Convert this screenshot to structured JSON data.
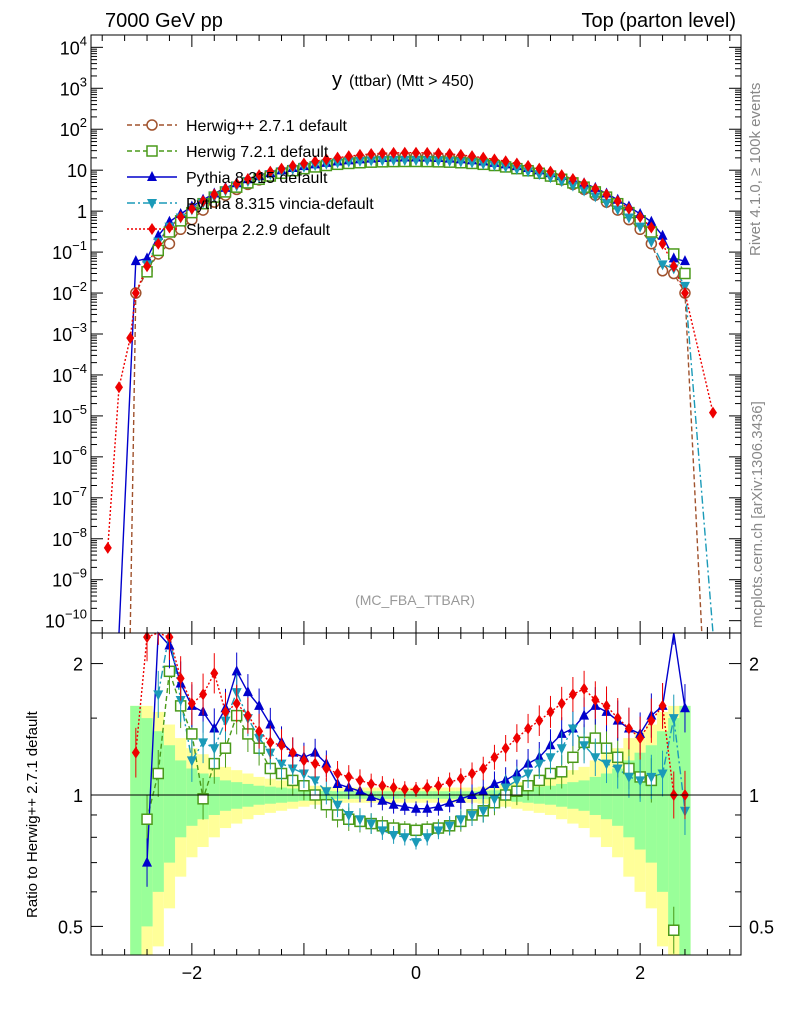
{
  "header": {
    "left": "7000 GeV pp",
    "right": "Top (parton level)"
  },
  "plot_title": {
    "main": "y",
    "sub": "(ttbar) (Mtt > 450)"
  },
  "side_labels": {
    "rivet": "Rivet 4.1.0, ≥ 100k events",
    "mcplots": "mcplots.cern.ch [arXiv:1306.3436]"
  },
  "analysis_tag": "(MC_FBA_TTBAR)",
  "ratio_ylabel": "Ratio to Herwig++ 2.7.1 default",
  "colors": {
    "herwigpp": "#a0522d",
    "herwig7": "#4a9a1a",
    "pythia": "#0000cc",
    "vincia": "#1a9ab8",
    "sherpa": "#ee0000",
    "band_inner": "#99ff99",
    "band_outer": "#ffff99"
  },
  "chart_data": [
    {
      "type": "line",
      "panel": "main",
      "title": "y (ttbar) (Mtt > 450)",
      "yscale": "log",
      "xlim": [
        -2.9,
        2.9
      ],
      "ylim": [
        5e-11,
        20000
      ],
      "y_ticks": [
        {
          "v": 1e-10,
          "base": "10",
          "exp": "−10"
        },
        {
          "v": 1e-09,
          "base": "10",
          "exp": "−9"
        },
        {
          "v": 1e-08,
          "base": "10",
          "exp": "−8"
        },
        {
          "v": 1e-07,
          "base": "10",
          "exp": "−7"
        },
        {
          "v": 1e-06,
          "base": "10",
          "exp": "−6"
        },
        {
          "v": 1e-05,
          "base": "10",
          "exp": "−5"
        },
        {
          "v": 0.0001,
          "base": "10",
          "exp": "−4"
        },
        {
          "v": 0.001,
          "base": "10",
          "exp": "−3"
        },
        {
          "v": 0.01,
          "base": "10",
          "exp": "−2"
        },
        {
          "v": 0.1,
          "base": "10",
          "exp": "−1"
        },
        {
          "v": 1,
          "base": "1",
          "exp": ""
        },
        {
          "v": 10,
          "base": "10",
          "exp": ""
        },
        {
          "v": 100,
          "base": "10",
          "exp": "2"
        },
        {
          "v": 1000,
          "base": "10",
          "exp": "3"
        },
        {
          "v": 10000,
          "base": "10",
          "exp": "4"
        }
      ],
      "bins": {
        "start": -2.5,
        "width": 0.1,
        "count": 50
      },
      "series": [
        {
          "name": "Herwig++ 2.7.1 default",
          "key": "herwigpp",
          "marker": "circle-open",
          "dash": "5,3",
          "edges": [
            {
              "x": -2.55,
              "y": 1e-11
            },
            {
              "x": 2.55,
              "y": 1e-11
            }
          ],
          "values": [
            0.01,
            0.035,
            0.09,
            0.16,
            0.36,
            0.62,
            1.06,
            1.66,
            2.45,
            3.4,
            4.5,
            5.8,
            7.1,
            8.5,
            9.9,
            11.4,
            13.0,
            14.6,
            16.1,
            17.6,
            18.9,
            20.0,
            20.8,
            21.3,
            21.6,
            21.6,
            21.3,
            20.8,
            20.0,
            18.9,
            17.6,
            16.1,
            14.6,
            13.0,
            11.4,
            9.9,
            8.5,
            7.1,
            5.8,
            4.5,
            3.4,
            2.45,
            1.66,
            1.06,
            0.62,
            0.36,
            0.16,
            0.035,
            0.03,
            0.01
          ]
        },
        {
          "name": "Herwig 7.2.1 default",
          "key": "herwig7",
          "marker": "square-open",
          "dash": "5,3",
          "values": [
            0.0,
            0.033,
            0.11,
            0.31,
            0.58,
            0.92,
            1.52,
            2.2,
            2.95,
            3.85,
            4.9,
            6.0,
            7.2,
            8.4,
            9.7,
            10.9,
            12.0,
            13.0,
            13.9,
            14.6,
            15.2,
            15.7,
            16.0,
            16.2,
            16.3,
            16.3,
            16.2,
            16.0,
            15.7,
            15.2,
            14.6,
            13.9,
            13.0,
            12.0,
            10.9,
            9.7,
            8.4,
            7.2,
            6.0,
            4.9,
            3.85,
            2.95,
            2.2,
            1.52,
            0.92,
            0.58,
            0.31,
            0.0,
            0.09,
            0.03
          ]
        },
        {
          "name": "Pythia 8.315 default",
          "key": "pythia",
          "marker": "triangle-up",
          "dash": "",
          "edges": [
            {
              "x": -2.65,
              "y": 1e-11
            }
          ],
          "values": [
            0.06,
            0.07,
            0.25,
            0.55,
            0.85,
            1.3,
            1.9,
            2.7,
            3.7,
            4.8,
            6.0,
            7.2,
            8.5,
            9.9,
            11.3,
            12.6,
            13.9,
            15.1,
            16.3,
            17.4,
            18.4,
            19.2,
            19.8,
            20.2,
            20.4,
            20.4,
            20.2,
            19.8,
            19.2,
            18.4,
            17.4,
            16.3,
            15.1,
            13.9,
            12.6,
            11.3,
            9.9,
            8.5,
            7.2,
            6.0,
            4.8,
            3.7,
            2.7,
            1.9,
            1.3,
            0.85,
            0.55,
            0.25,
            0.07,
            0.06
          ]
        },
        {
          "name": "Pythia 8.315 vincia-default",
          "key": "vincia",
          "marker": "triangle-down",
          "dash": "8,3,2,3",
          "edges": [
            {
              "x": 2.65,
              "y": 1e-11
            }
          ],
          "values": [
            0.0,
            0.05,
            0.18,
            0.42,
            0.7,
            1.1,
            1.6,
            2.3,
            3.2,
            4.2,
            5.4,
            6.7,
            8.0,
            9.4,
            10.8,
            12.1,
            13.3,
            14.4,
            15.4,
            16.2,
            16.8,
            17.2,
            17.5,
            17.6,
            17.6,
            17.6,
            17.5,
            17.2,
            16.8,
            16.2,
            15.4,
            14.4,
            13.3,
            12.1,
            10.8,
            9.4,
            8.0,
            6.7,
            5.4,
            4.2,
            3.2,
            2.3,
            1.6,
            1.1,
            0.7,
            0.42,
            0.18,
            0.05,
            0.04,
            0.015
          ]
        },
        {
          "name": "Sherpa 2.2.9 default",
          "key": "sherpa",
          "marker": "diamond",
          "dash": "2,2",
          "edges": [
            {
              "x": -2.75,
              "y": 6e-09
            },
            {
              "x": -2.65,
              "y": 5e-05
            },
            {
              "x": -2.55,
              "y": 0.0008
            },
            {
              "x": 2.65,
              "y": 1.2e-05
            }
          ],
          "values": [
            0.01,
            0.045,
            0.16,
            0.4,
            0.72,
            1.15,
            1.75,
            2.55,
            3.5,
            4.7,
            6.1,
            7.6,
            9.2,
            10.9,
            12.7,
            14.6,
            16.5,
            18.4,
            20.2,
            22.0,
            23.6,
            24.9,
            25.8,
            26.4,
            26.7,
            26.7,
            26.4,
            25.8,
            24.9,
            23.6,
            22.0,
            20.2,
            18.4,
            16.5,
            14.6,
            12.7,
            10.9,
            9.2,
            7.6,
            6.1,
            4.7,
            3.5,
            2.55,
            1.75,
            1.15,
            0.72,
            0.4,
            0.16,
            0.045,
            0.01
          ]
        }
      ]
    },
    {
      "type": "line",
      "panel": "ratio",
      "ylabel": "Ratio to Herwig++ 2.7.1 default",
      "yscale": "log",
      "xlim": [
        -2.9,
        2.9
      ],
      "ylim": [
        0.43,
        2.35
      ],
      "x_ticks": [
        {
          "v": -2,
          "label": "−2"
        },
        {
          "v": 0,
          "label": "0"
        },
        {
          "v": 2,
          "label": "2"
        }
      ],
      "y_ticks": [
        {
          "v": 0.5,
          "label": "0.5"
        },
        {
          "v": 1,
          "label": "1"
        },
        {
          "v": 2,
          "label": "2"
        }
      ],
      "reference": 1,
      "band": {
        "inner": [
          0.4,
          0.5,
          0.6,
          0.7,
          0.8,
          0.85,
          0.88,
          0.9,
          0.92,
          0.93,
          0.94,
          0.95,
          0.955,
          0.96,
          0.965,
          0.97,
          0.975,
          0.978,
          0.98,
          0.98,
          0.98,
          0.98,
          0.98,
          0.98,
          0.98,
          0.98,
          0.98,
          0.98,
          0.98,
          0.98,
          0.98,
          0.978,
          0.975,
          0.97,
          0.965,
          0.96,
          0.955,
          0.95,
          0.94,
          0.93,
          0.92,
          0.9,
          0.88,
          0.85,
          0.8,
          0.75,
          0.7,
          0.6,
          0.5,
          0.4
        ],
        "outer": [
          0.4,
          0.4,
          0.45,
          0.55,
          0.65,
          0.72,
          0.76,
          0.8,
          0.84,
          0.86,
          0.88,
          0.9,
          0.91,
          0.92,
          0.93,
          0.94,
          0.95,
          0.955,
          0.96,
          0.96,
          0.96,
          0.96,
          0.96,
          0.96,
          0.96,
          0.96,
          0.96,
          0.96,
          0.96,
          0.96,
          0.96,
          0.955,
          0.95,
          0.94,
          0.93,
          0.92,
          0.91,
          0.9,
          0.88,
          0.86,
          0.84,
          0.8,
          0.76,
          0.72,
          0.65,
          0.6,
          0.55,
          0.45,
          0.4,
          0.4
        ]
      },
      "series": [
        {
          "name": "Herwig 7.2.1 default",
          "key": "herwig7",
          "marker": "square-open",
          "dash": "5,3",
          "values": [
            null,
            0.88,
            1.12,
            1.92,
            1.6,
            1.38,
            0.98,
            1.18,
            1.28,
            1.52,
            1.38,
            1.28,
            1.15,
            1.12,
            1.08,
            1.05,
            1.0,
            0.95,
            0.9,
            0.88,
            0.87,
            0.86,
            0.85,
            0.84,
            0.835,
            0.83,
            0.835,
            0.84,
            0.85,
            0.87,
            0.9,
            0.92,
            0.96,
            1.0,
            1.02,
            1.05,
            1.08,
            1.12,
            1.13,
            1.22,
            1.32,
            1.35,
            1.28,
            1.22,
            1.15,
            1.1,
            1.08,
            null,
            0.49,
            null
          ]
        },
        {
          "name": "Pythia 8.315 default",
          "key": "pythia",
          "marker": "triangle-up",
          "dash": "",
          "values": [
            null,
            0.7,
            2.5,
            2.2,
            1.8,
            1.6,
            1.55,
            1.42,
            1.58,
            1.92,
            1.72,
            1.6,
            1.45,
            1.32,
            1.25,
            1.22,
            1.25,
            1.18,
            1.06,
            1.04,
            1.02,
            0.99,
            0.97,
            0.95,
            0.94,
            0.93,
            0.93,
            0.94,
            0.96,
            0.98,
            1.0,
            1.02,
            1.06,
            1.08,
            1.12,
            1.18,
            1.22,
            1.3,
            1.38,
            1.42,
            1.52,
            1.6,
            1.55,
            1.48,
            1.42,
            1.38,
            1.52,
            1.6,
            2.5,
            1.58
          ]
        },
        {
          "name": "Pythia 8.315 vincia-default",
          "key": "vincia",
          "marker": "triangle-down",
          "dash": "8,3,2,3",
          "values": [
            null,
            null,
            1.7,
            2.4,
            1.65,
            1.2,
            1.32,
            1.28,
            1.48,
            1.72,
            1.5,
            1.35,
            1.25,
            1.18,
            1.15,
            1.12,
            1.08,
            1.02,
            0.95,
            0.9,
            0.88,
            0.86,
            0.83,
            0.81,
            0.8,
            0.78,
            0.8,
            0.83,
            0.85,
            0.88,
            0.9,
            0.92,
            0.98,
            1.04,
            1.08,
            1.12,
            1.18,
            1.22,
            1.28,
            1.42,
            1.3,
            1.22,
            1.18,
            1.15,
            1.1,
            1.08,
            1.1,
            1.12,
            1.5,
            0.92
          ]
        },
        {
          "name": "Sherpa 2.2.9 default",
          "key": "sherpa",
          "marker": "diamond",
          "dash": "2,2",
          "values": [
            1.25,
            2.3,
            2.5,
            2.3,
            1.85,
            1.62,
            1.7,
            1.9,
            1.55,
            1.62,
            1.52,
            1.4,
            1.32,
            1.3,
            1.25,
            1.2,
            1.18,
            1.15,
            1.12,
            1.1,
            1.08,
            1.06,
            1.05,
            1.04,
            1.03,
            1.03,
            1.04,
            1.05,
            1.07,
            1.09,
            1.12,
            1.15,
            1.22,
            1.28,
            1.35,
            1.42,
            1.48,
            1.55,
            1.62,
            1.7,
            1.75,
            1.65,
            1.6,
            1.5,
            1.42,
            1.35,
            1.48,
            1.6,
            1.0,
            1.0
          ]
        }
      ]
    }
  ]
}
